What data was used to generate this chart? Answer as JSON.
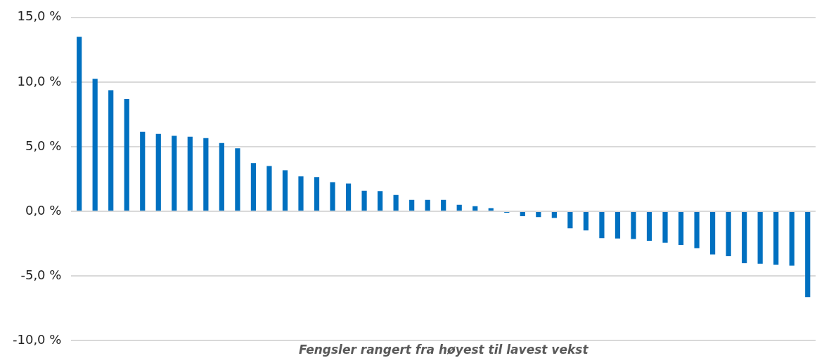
{
  "chart_data": {
    "type": "bar",
    "xlabel": "Fengsler rangert fra høyest til lavest vekst",
    "categories": [
      null,
      null,
      null,
      null,
      null,
      null,
      null,
      null,
      null,
      null,
      null,
      null,
      null,
      null,
      null,
      null,
      null,
      null,
      null,
      null,
      null,
      null,
      null,
      null,
      null,
      null,
      null,
      null,
      null,
      null,
      null,
      null,
      null,
      null,
      null,
      null,
      null,
      null,
      null,
      null,
      null,
      null,
      null,
      null,
      null,
      null,
      null
    ],
    "values": [
      13.5,
      10.25,
      9.37,
      8.69,
      6.15,
      5.99,
      5.84,
      5.77,
      5.66,
      5.28,
      4.88,
      3.74,
      3.5,
      3.18,
      2.7,
      2.65,
      2.26,
      2.15,
      1.59,
      1.57,
      1.26,
      0.88,
      0.88,
      0.88,
      0.51,
      0.4,
      0.24,
      -0.1,
      -0.38,
      -0.44,
      -0.51,
      -1.32,
      -1.48,
      -2.08,
      -2.1,
      -2.14,
      -2.28,
      -2.43,
      -2.6,
      -2.85,
      -3.34,
      -3.47,
      -4.02,
      -4.05,
      -4.13,
      -4.2,
      -6.63
    ],
    "color": "#0070c0",
    "ylim": [
      -10,
      15
    ],
    "yticks": [
      {
        "value": -10,
        "label": "-10,0 %"
      },
      {
        "value": -5,
        "label": "-5,0 %"
      },
      {
        "value": 0,
        "label": "0,0 %"
      },
      {
        "value": 5,
        "label": "5,0 %"
      },
      {
        "value": 10,
        "label": "10,0 %"
      },
      {
        "value": 15,
        "label": "15,0 %"
      }
    ],
    "grid": "y",
    "tick_labels": "y"
  }
}
